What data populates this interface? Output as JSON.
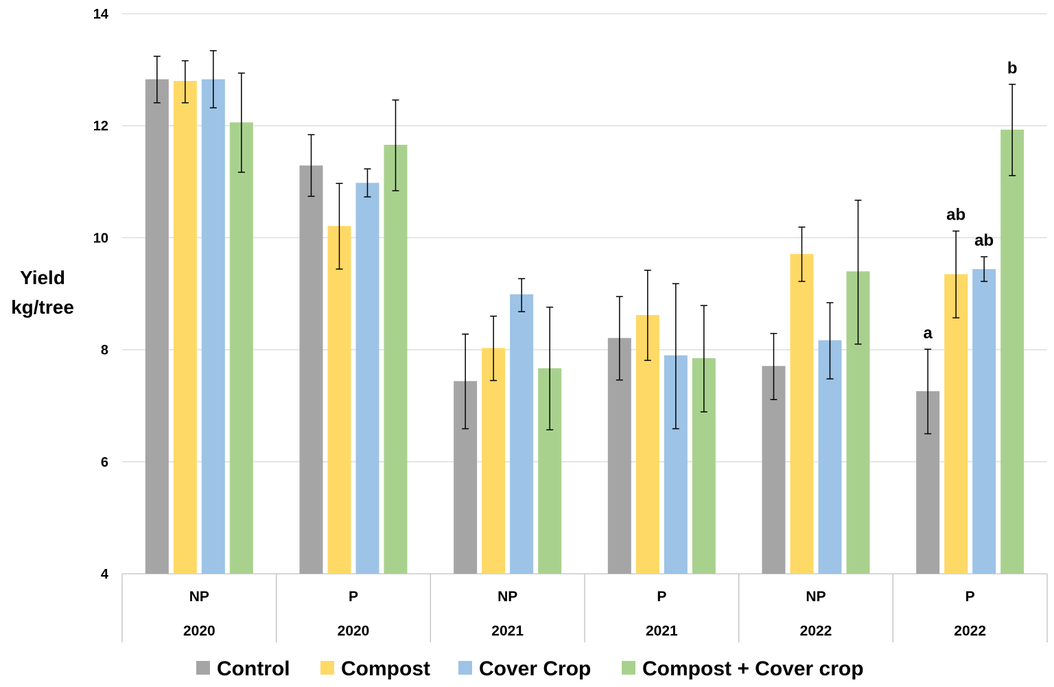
{
  "chart_data": {
    "type": "bar",
    "ylabel_lines": [
      "Yield",
      "kg/tree"
    ],
    "ylim": [
      4,
      14
    ],
    "yticks": [
      4,
      6,
      8,
      10,
      12,
      14
    ],
    "grid": true,
    "categories": [
      {
        "sub": "NP",
        "year": "2020"
      },
      {
        "sub": "P",
        "year": "2020"
      },
      {
        "sub": "NP",
        "year": "2021"
      },
      {
        "sub": "P",
        "year": "2021"
      },
      {
        "sub": "NP",
        "year": "2022"
      },
      {
        "sub": "P",
        "year": "2022"
      }
    ],
    "series": [
      {
        "name": "Control",
        "color": "#a5a5a5",
        "values": [
          12.83,
          11.29,
          7.44,
          8.21,
          7.71,
          7.26
        ],
        "err_low": [
          12.41,
          10.74,
          6.59,
          7.46,
          7.11,
          6.5
        ],
        "err_high": [
          13.24,
          11.84,
          8.28,
          8.95,
          8.29,
          8.01
        ]
      },
      {
        "name": "Compost",
        "color": "#ffd966",
        "values": [
          12.8,
          10.21,
          8.03,
          8.62,
          9.71,
          9.35
        ],
        "err_low": [
          12.41,
          9.44,
          7.45,
          7.81,
          9.22,
          8.57
        ],
        "err_high": [
          13.16,
          10.97,
          8.6,
          9.42,
          10.19,
          10.12
        ]
      },
      {
        "name": "Cover Crop",
        "color": "#9dc3e6",
        "values": [
          12.83,
          10.98,
          8.99,
          7.9,
          8.17,
          9.44
        ],
        "err_low": [
          12.32,
          10.73,
          8.68,
          6.59,
          7.48,
          9.22
        ],
        "err_high": [
          13.34,
          11.23,
          9.27,
          9.18,
          8.84,
          9.66
        ]
      },
      {
        "name": "Compost + Cover crop",
        "color": "#a9d18e",
        "values": [
          12.06,
          11.66,
          7.67,
          7.85,
          9.4,
          11.93
        ],
        "err_low": [
          11.17,
          10.84,
          6.57,
          6.89,
          8.1,
          11.11
        ],
        "err_high": [
          12.94,
          12.46,
          8.76,
          8.79,
          10.67,
          12.74
        ]
      }
    ],
    "annotations": [
      {
        "category": 5,
        "series": 0,
        "text": "a"
      },
      {
        "category": 5,
        "series": 1,
        "text": "ab"
      },
      {
        "category": 5,
        "series": 2,
        "text": "ab"
      },
      {
        "category": 5,
        "series": 3,
        "text": "b"
      }
    ],
    "legend_position": "bottom"
  }
}
